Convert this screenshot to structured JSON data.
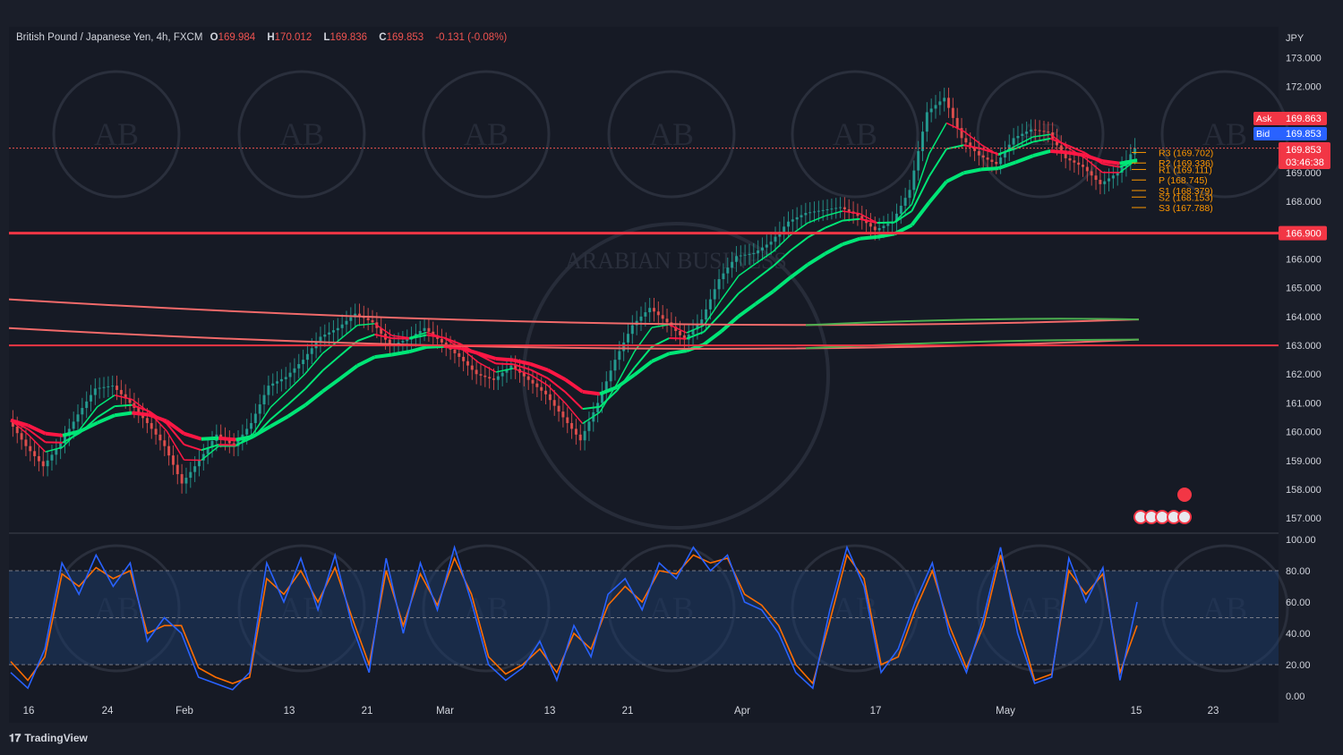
{
  "header": {
    "symbol": "British Pound / Japanese Yen, 4h, FXCM",
    "o_label": "O",
    "o": "169.984",
    "h_label": "H",
    "h": "170.012",
    "l_label": "L",
    "l": "169.836",
    "c_label": "C",
    "c": "169.853",
    "change": "-0.131 (-0.08%)"
  },
  "currency": "JPY",
  "brand": "TradingView",
  "watermark_text": "ARABIAN BUSINESS",
  "colors": {
    "up": "#26a69a",
    "down": "#ef5350",
    "green_ma": "#00e676",
    "red_ma": "#ff1744",
    "pivot": "#ff9800",
    "k_line": "#2962ff",
    "d_line": "#ff6d00",
    "level": "#f23645"
  },
  "chart_data": [
    {
      "type": "line",
      "title": "British Pound / Japanese Yen, 4h, FXCM",
      "ylabel": "JPY",
      "ylim": [
        156.6,
        173.6
      ],
      "y_ticks": [
        "157.000",
        "158.000",
        "159.000",
        "160.000",
        "161.000",
        "162.000",
        "163.000",
        "164.000",
        "165.000",
        "166.000",
        "168.000",
        "169.000",
        "172.000",
        "173.000"
      ],
      "x_ticks": [
        "16",
        "24",
        "Feb",
        "13",
        "21",
        "Mar",
        "13",
        "21",
        "Apr",
        "17",
        "May",
        "15",
        "23"
      ],
      "series": [
        {
          "values": [
            160.4,
            159.5,
            158.8,
            159.6,
            160.6,
            161.5,
            161.6,
            161.0,
            160.3,
            159.5,
            158.2,
            159.0,
            159.9,
            159.5,
            160.3,
            161.6,
            161.9,
            162.5,
            163.3,
            163.6,
            164.1,
            163.8,
            163.0,
            163.2,
            163.6,
            163.1,
            162.6,
            162.0,
            161.8,
            162.3,
            161.8,
            161.3,
            160.5,
            159.7,
            161.0,
            162.5,
            163.7,
            164.3,
            163.8,
            163.2,
            163.9,
            165.3,
            166.1,
            166.2,
            166.6,
            167.3,
            167.6,
            167.7,
            167.8,
            167.5,
            167.0,
            167.3,
            168.4,
            171.1,
            171.6,
            170.2,
            169.6,
            169.3,
            170.2,
            170.5,
            170.4,
            169.5,
            169.2,
            168.6,
            169.0,
            169.853
          ]
        }
      ],
      "price_labels": [
        {
          "label": "Ask",
          "value": "169.863"
        },
        {
          "label": "Bid",
          "value": "169.853"
        },
        {
          "label": "",
          "value": "169.853"
        },
        {
          "label": "",
          "value": "03:46:38"
        },
        {
          "label": "",
          "value": "166.900"
        }
      ],
      "horizontal_levels": [
        166.9,
        163.0
      ],
      "pivots": [
        {
          "label": "R3 (169.702)",
          "value": 169.702
        },
        {
          "label": "R2 (169.336)",
          "value": 169.336
        },
        {
          "label": "R1 (169.111)",
          "value": 169.111
        },
        {
          "label": "P (168.745)",
          "value": 168.745
        },
        {
          "label": "S1 (168.379)",
          "value": 168.379
        },
        {
          "label": "S2 (168.153)",
          "value": 168.153
        },
        {
          "label": "S3 (167.788)",
          "value": 167.788
        }
      ]
    },
    {
      "type": "line",
      "ylim": [
        0,
        100
      ],
      "y_ticks": [
        "100.00",
        "80.00",
        "60.00",
        "40.00",
        "20.00",
        "0.00"
      ],
      "band": [
        20,
        80
      ],
      "series": [
        {
          "values": [
            15,
            5,
            30,
            85,
            65,
            90,
            70,
            85,
            35,
            50,
            40,
            12,
            8,
            4,
            15,
            85,
            60,
            88,
            55,
            90,
            45,
            15,
            88,
            40,
            85,
            55,
            95,
            60,
            20,
            10,
            18,
            35,
            10,
            45,
            25,
            65,
            75,
            55,
            85,
            75,
            95,
            80,
            90,
            60,
            55,
            40,
            15,
            5,
            55,
            95,
            70,
            15,
            30,
            60,
            85,
            40,
            15,
            50,
            95,
            40,
            8,
            12,
            88,
            60,
            82,
            10,
            60
          ]
        },
        {
          "values": [
            22,
            10,
            25,
            78,
            70,
            82,
            75,
            80,
            40,
            45,
            45,
            18,
            12,
            8,
            12,
            75,
            65,
            80,
            60,
            82,
            50,
            20,
            80,
            45,
            78,
            58,
            88,
            65,
            25,
            14,
            20,
            30,
            15,
            40,
            30,
            58,
            70,
            60,
            80,
            78,
            90,
            85,
            88,
            65,
            58,
            45,
            20,
            8,
            48,
            90,
            75,
            20,
            25,
            55,
            80,
            45,
            18,
            45,
            90,
            48,
            10,
            14,
            80,
            65,
            78,
            15,
            45
          ]
        }
      ]
    }
  ]
}
